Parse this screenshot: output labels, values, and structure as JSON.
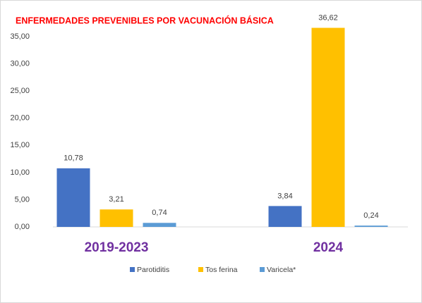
{
  "chart_data": {
    "type": "bar",
    "title": "ENFERMEDADES PREVENIBLES POR VACUNACIÓN BÁSICA",
    "categories": [
      "2019-2023",
      "2024"
    ],
    "series": [
      {
        "name": "Parotiditis",
        "color": "#4472c4",
        "values": [
          10.78,
          3.84
        ],
        "value_labels": [
          "10,78",
          "3,84"
        ]
      },
      {
        "name": "Tos ferina",
        "color": "#ffc000",
        "values": [
          3.21,
          36.62
        ],
        "value_labels": [
          "3,21",
          "36,62"
        ]
      },
      {
        "name": "Varicela*",
        "color": "#5b9bd5",
        "values": [
          0.74,
          0.24
        ],
        "value_labels": [
          "0,74",
          "0,24"
        ]
      }
    ],
    "ylim": [
      0,
      35
    ],
    "yticks": [
      {
        "value": 0,
        "label": "0,00"
      },
      {
        "value": 5,
        "label": "5,00"
      },
      {
        "value": 10,
        "label": "10,00"
      },
      {
        "value": 15,
        "label": "15,00"
      },
      {
        "value": 20,
        "label": "20,00"
      },
      {
        "value": 25,
        "label": "25,00"
      },
      {
        "value": 30,
        "label": "30,00"
      },
      {
        "value": 35,
        "label": "35,00"
      }
    ],
    "grid": false,
    "legend": "bottom"
  }
}
